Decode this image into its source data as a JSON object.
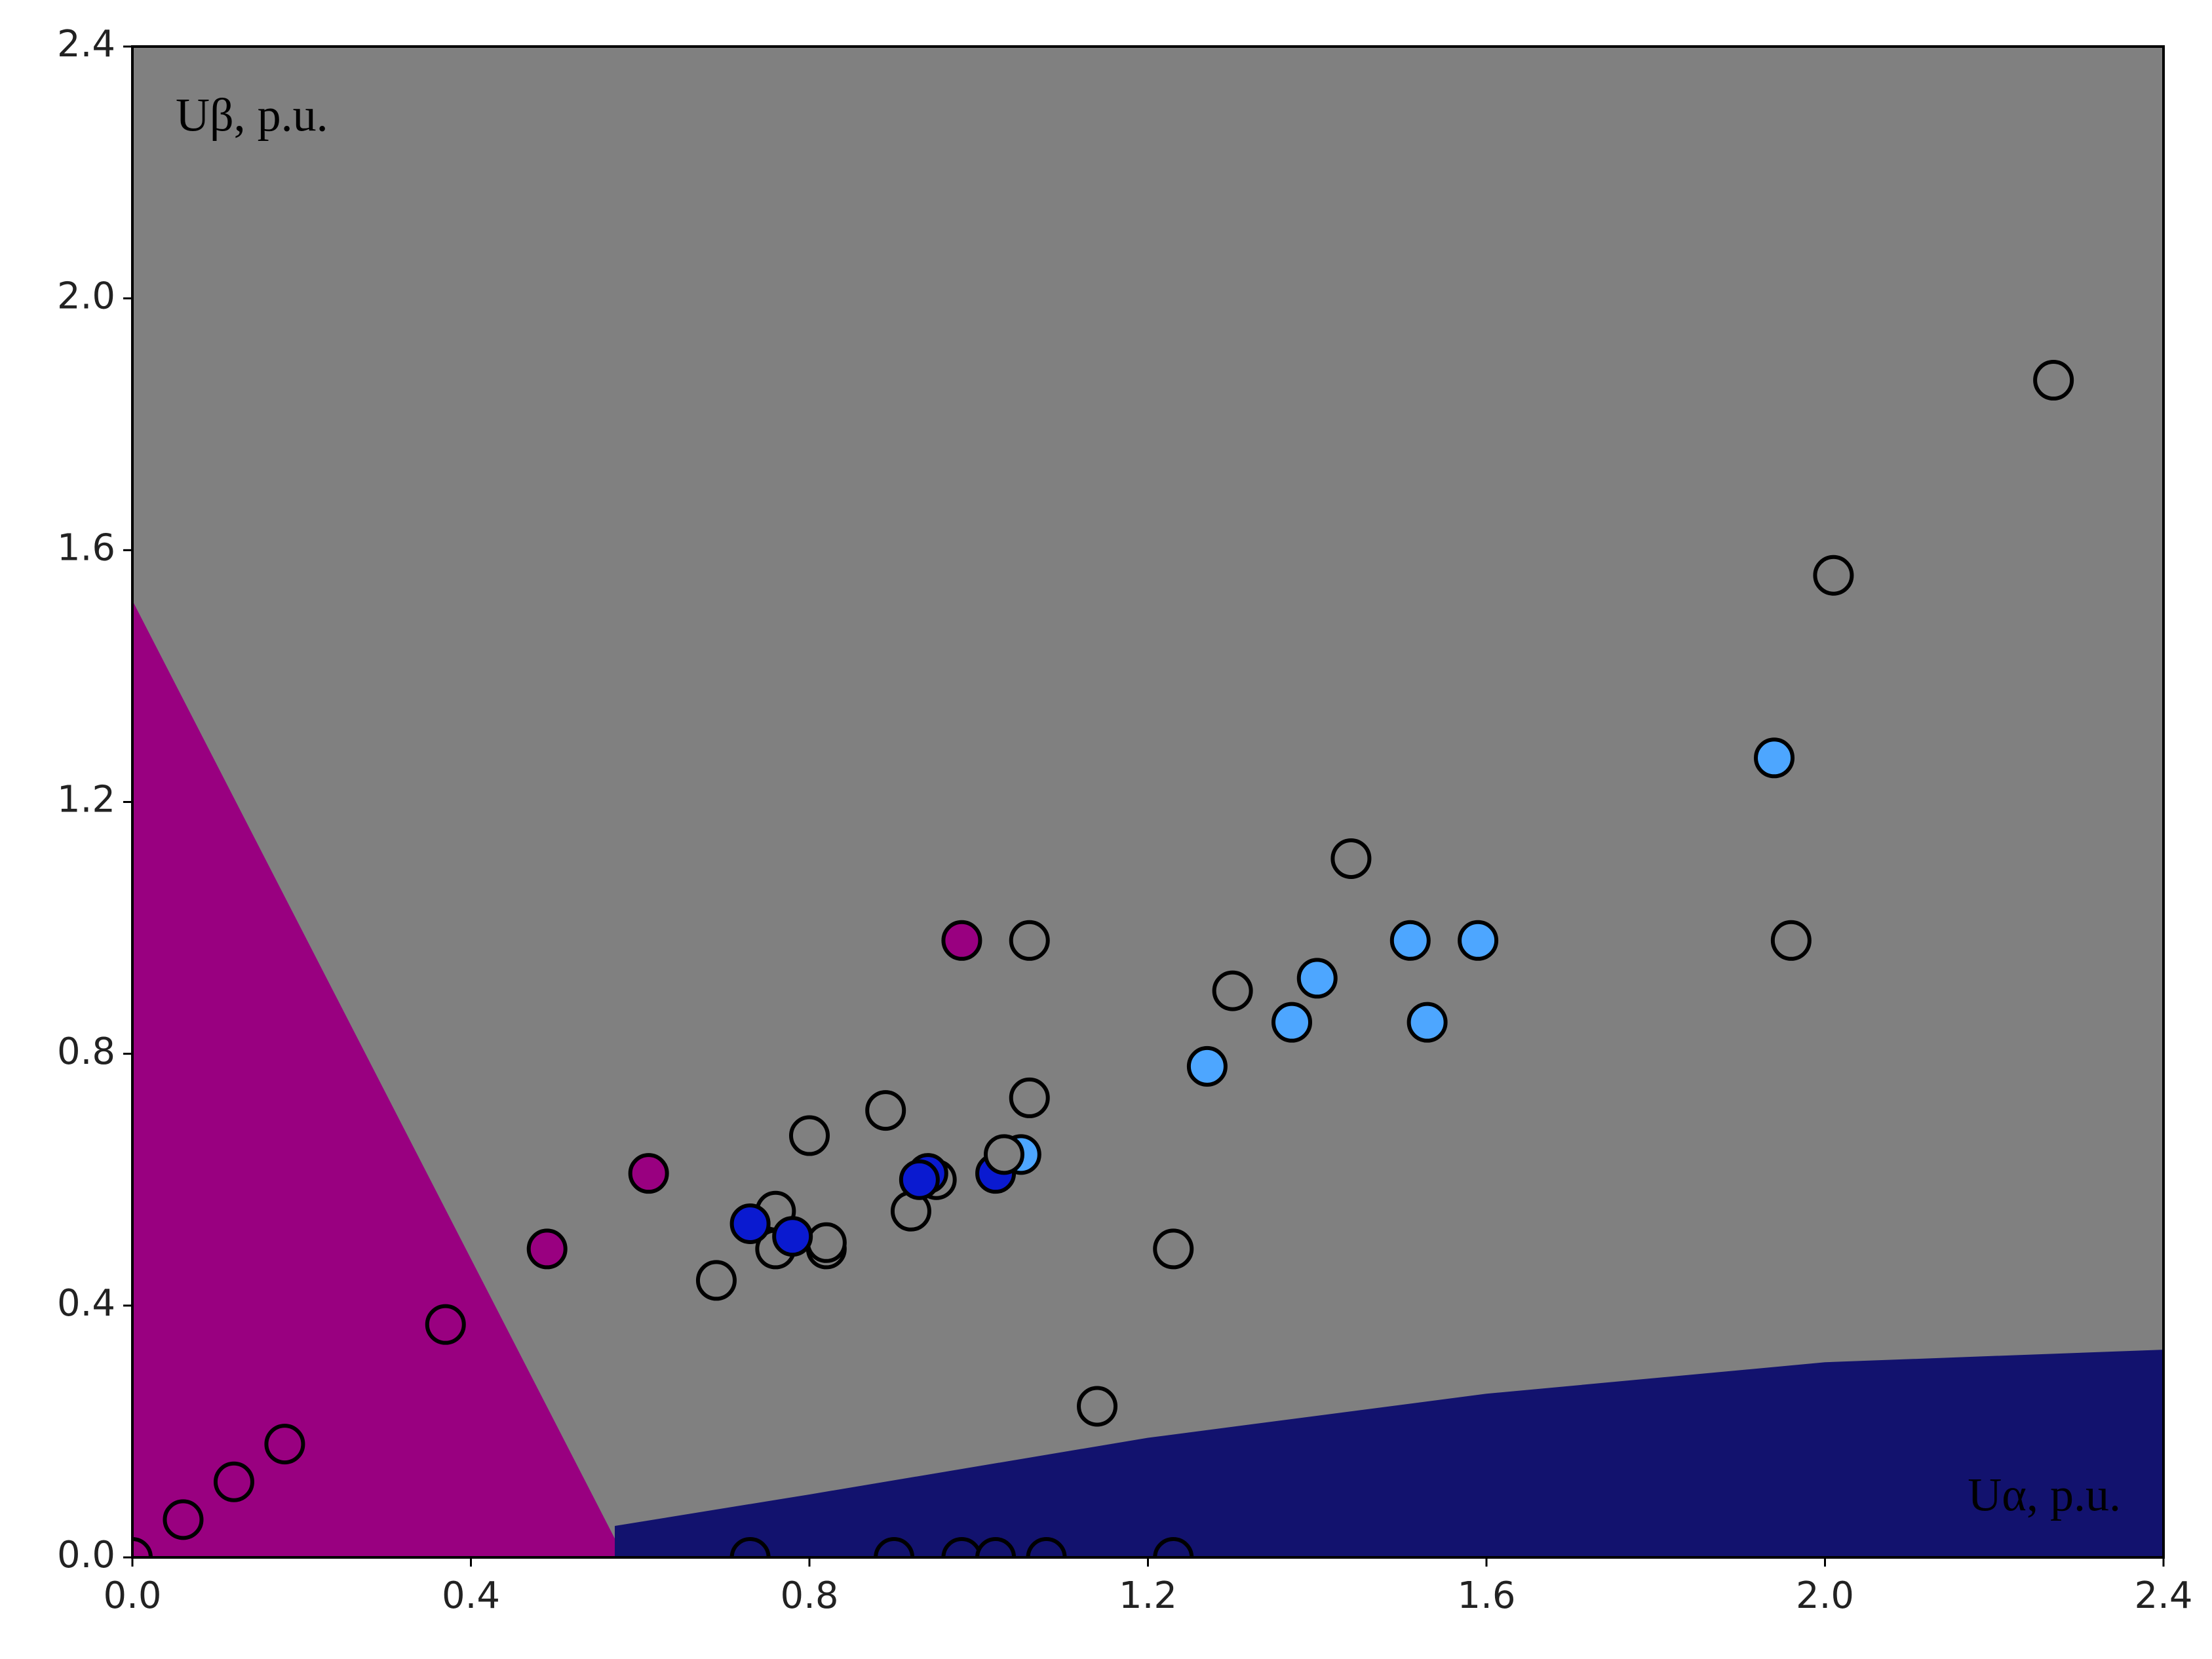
{
  "chart_data": {
    "type": "scatter",
    "annotations": [
      "Uβ, p.u.",
      "Uα, p.u."
    ],
    "background": "#808080",
    "xlim": [
      0,
      2.4
    ],
    "ylim": [
      0,
      2.4
    ],
    "xticks": [
      {
        "value": 0,
        "label": "0.0"
      },
      0.4,
      0.8,
      1.2,
      1.6,
      {
        "value": 2,
        "label": "2.0"
      },
      2.4
    ],
    "yticks": [
      {
        "value": 0,
        "label": "0.0"
      },
      0.4,
      0.8,
      1.2,
      1.6,
      {
        "value": 2,
        "label": "2.0"
      },
      2.4
    ],
    "regions": [
      {
        "color": "#990080",
        "x": [
          0,
          0,
          0.57,
          0.57
        ],
        "y": [
          0,
          1.52,
          0.03,
          0
        ]
      },
      {
        "color": "#12126e",
        "x": [
          0.57,
          0.57,
          0.8,
          1.2,
          1.6,
          2.0,
          2.4,
          2.4
        ],
        "y": [
          0,
          0.05,
          0.1,
          0.19,
          0.26,
          0.31,
          0.33,
          0
        ]
      }
    ],
    "series": [
      {
        "color": "#808080",
        "x": [
          2.27,
          2.01,
          1.96,
          1.44,
          1.3,
          1.06,
          1.06,
          0.89,
          0.8,
          0.95,
          0.92,
          0.76,
          0.76,
          0.82,
          0.82,
          0.69,
          1.23,
          1.14
        ],
        "y": [
          1.87,
          1.56,
          0.98,
          1.11,
          0.9,
          0.98,
          0.73,
          0.71,
          0.67,
          0.6,
          0.55,
          0.55,
          0.49,
          0.49,
          0.5,
          0.44,
          0.49,
          0.24
        ]
      },
      {
        "color": "#0a1ad0",
        "x": [
          0.73,
          0.78,
          0.94,
          0.93,
          1.02
        ],
        "y": [
          0.53,
          0.51,
          0.61,
          0.6,
          0.61
        ]
      },
      {
        "color": "#4da6ff",
        "x": [
          1.94,
          1.51,
          1.59,
          1.4,
          1.37,
          1.53,
          1.27,
          1.05
        ],
        "y": [
          1.27,
          0.98,
          0.98,
          0.92,
          0.85,
          0.85,
          0.78,
          0.64
        ]
      },
      {
        "color": "#808080",
        "x": [
          1.03
        ],
        "y": [
          0.64
        ]
      },
      {
        "color": "#990080",
        "x": [
          0.98,
          0.61,
          0.49,
          0.37,
          0.18,
          0.12,
          0.06,
          0
        ],
        "y": [
          0.98,
          0.61,
          0.49,
          0.37,
          0.18,
          0.12,
          0.06,
          0
        ]
      },
      {
        "color": "#12126e",
        "x": [
          0.73,
          0.9,
          0.98,
          1.02,
          1.08,
          1.23
        ],
        "y": [
          0,
          0,
          0,
          0,
          0,
          0
        ]
      }
    ]
  }
}
